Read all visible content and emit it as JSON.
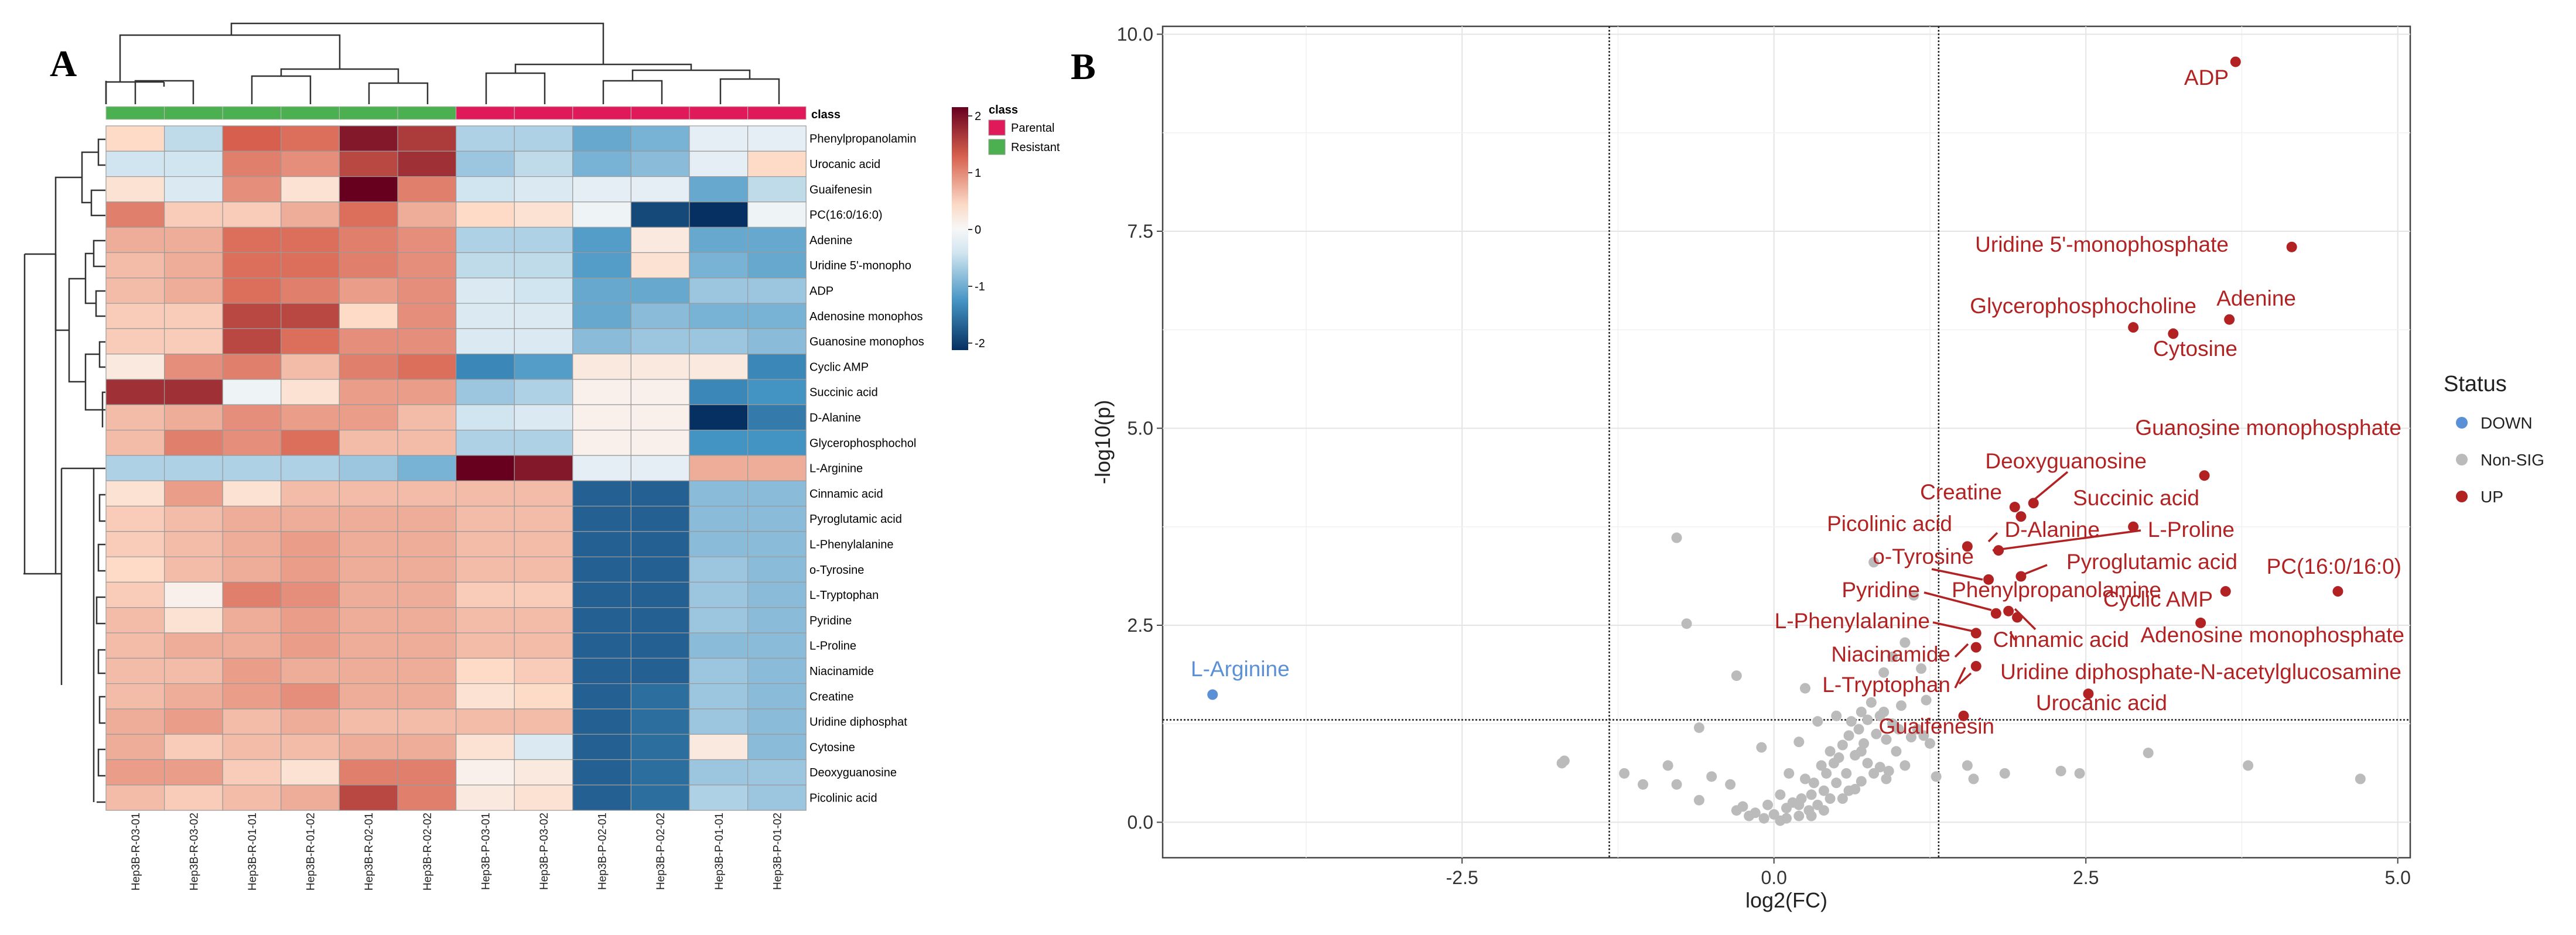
{
  "panels": {
    "a": "A",
    "b": "B"
  },
  "chart_data": [
    {
      "type": "heatmap",
      "annotation_label": "class",
      "samples": [
        "Hep3B-R-03-01",
        "Hep3B-R-03-02",
        "Hep3B-R-01-01",
        "Hep3B-R-01-02",
        "Hep3B-R-02-01",
        "Hep3B-R-02-02",
        "Hep3B-P-03-01",
        "Hep3B-P-03-02",
        "Hep3B-P-02-01",
        "Hep3B-P-02-02",
        "Hep3B-P-01-01",
        "Hep3B-P-01-02"
      ],
      "sample_class": [
        "Resistant",
        "Resistant",
        "Resistant",
        "Resistant",
        "Resistant",
        "Resistant",
        "Parental",
        "Parental",
        "Parental",
        "Parental",
        "Parental",
        "Parental"
      ],
      "rows": [
        "Phenylpropanolamin",
        "Urocanic acid",
        "Guaifenesin",
        "PC(16:0/16:0)",
        "Adenine",
        "Uridine 5'-monopho",
        "ADP",
        "Adenosine monophos",
        "Guanosine monophos",
        "Cyclic AMP",
        "Succinic acid",
        "D-Alanine",
        "Glycerophosphochol",
        "L-Arginine",
        "Cinnamic acid",
        "Pyroglutamic acid",
        "L-Phenylalanine",
        "o-Tyrosine",
        "L-Tryptophan",
        "Pyridine",
        "L-Proline",
        "Niacinamide",
        "Creatine",
        "Uridine diphosphat",
        "Cytosine",
        "Deoxyguanosine",
        "Picolinic acid"
      ],
      "values": [
        [
          0.4,
          -0.5,
          1.2,
          1.1,
          1.8,
          1.5,
          -0.6,
          -0.6,
          -1.0,
          -0.9,
          -0.2,
          -0.2
        ],
        [
          -0.4,
          -0.4,
          1.0,
          0.9,
          1.4,
          1.6,
          -0.7,
          -0.5,
          -0.9,
          -0.8,
          -0.2,
          0.4
        ],
        [
          0.3,
          -0.3,
          0.9,
          0.3,
          2.0,
          1.0,
          -0.4,
          -0.3,
          -0.2,
          -0.2,
          -1.0,
          -0.5
        ],
        [
          1.0,
          0.5,
          0.5,
          0.7,
          1.1,
          0.7,
          0.4,
          0.3,
          -0.1,
          -1.8,
          -2.0,
          -0.1
        ],
        [
          0.7,
          0.7,
          1.1,
          1.1,
          1.0,
          0.9,
          -0.6,
          -0.6,
          -1.1,
          0.2,
          -1.0,
          -1.0
        ],
        [
          0.6,
          0.7,
          1.1,
          1.1,
          1.0,
          0.9,
          -0.5,
          -0.5,
          -1.1,
          0.3,
          -0.9,
          -1.0
        ],
        [
          0.6,
          0.7,
          1.1,
          1.0,
          0.8,
          0.9,
          -0.3,
          -0.4,
          -1.0,
          -1.0,
          -0.7,
          -0.7
        ],
        [
          0.5,
          0.5,
          1.4,
          1.4,
          0.4,
          0.9,
          -0.3,
          -0.3,
          -1.0,
          -0.8,
          -0.9,
          -0.9
        ],
        [
          0.5,
          0.5,
          1.4,
          1.1,
          0.9,
          0.9,
          -0.3,
          -0.3,
          -0.8,
          -0.7,
          -0.7,
          -0.8
        ],
        [
          0.2,
          0.9,
          1.0,
          0.6,
          1.0,
          1.1,
          -1.3,
          -1.1,
          0.2,
          0.2,
          0.2,
          -1.3
        ],
        [
          1.6,
          1.6,
          -0.1,
          0.3,
          0.8,
          0.8,
          -0.7,
          -0.6,
          0.1,
          0.1,
          -1.3,
          -1.2
        ],
        [
          0.6,
          0.7,
          0.9,
          0.8,
          0.8,
          0.6,
          -0.4,
          -0.3,
          0.1,
          0.1,
          -2.0,
          -1.4
        ],
        [
          0.6,
          1.0,
          0.9,
          1.1,
          0.6,
          0.6,
          -0.6,
          -0.6,
          0.1,
          0.1,
          -1.2,
          -1.2
        ],
        [
          -0.6,
          -0.6,
          -0.6,
          -0.6,
          -0.7,
          -0.9,
          2.0,
          1.8,
          -0.2,
          -0.2,
          0.7,
          0.7
        ],
        [
          0.3,
          0.8,
          0.3,
          0.6,
          0.6,
          0.6,
          0.6,
          0.6,
          -1.6,
          -1.6,
          -0.8,
          -0.8
        ],
        [
          0.5,
          0.6,
          0.7,
          0.7,
          0.7,
          0.7,
          0.6,
          0.6,
          -1.6,
          -1.6,
          -0.8,
          -0.8
        ],
        [
          0.5,
          0.6,
          0.7,
          0.8,
          0.7,
          0.7,
          0.6,
          0.6,
          -1.6,
          -1.6,
          -0.8,
          -0.8
        ],
        [
          0.4,
          0.6,
          0.7,
          0.8,
          0.7,
          0.7,
          0.6,
          0.6,
          -1.6,
          -1.6,
          -0.7,
          -0.8
        ],
        [
          0.5,
          0.1,
          1.0,
          0.9,
          0.7,
          0.7,
          0.5,
          0.5,
          -1.6,
          -1.6,
          -0.7,
          -0.8
        ],
        [
          0.6,
          0.3,
          0.7,
          0.8,
          0.7,
          0.7,
          0.6,
          0.6,
          -1.6,
          -1.6,
          -0.7,
          -0.8
        ],
        [
          0.6,
          0.7,
          0.7,
          0.8,
          0.7,
          0.7,
          0.6,
          0.6,
          -1.6,
          -1.6,
          -0.8,
          -0.8
        ],
        [
          0.6,
          0.6,
          0.8,
          0.7,
          0.7,
          0.7,
          0.4,
          0.5,
          -1.6,
          -1.6,
          -0.7,
          -0.8
        ],
        [
          0.6,
          0.7,
          0.8,
          0.9,
          0.7,
          0.7,
          0.3,
          0.4,
          -1.6,
          -1.5,
          -0.7,
          -0.8
        ],
        [
          0.7,
          0.8,
          0.6,
          0.7,
          0.6,
          0.6,
          0.6,
          0.6,
          -1.6,
          -1.5,
          -0.7,
          -0.8
        ],
        [
          0.7,
          0.5,
          0.6,
          0.6,
          0.7,
          0.7,
          0.3,
          -0.3,
          -1.6,
          -1.5,
          0.2,
          -0.8
        ],
        [
          0.8,
          0.8,
          0.5,
          0.3,
          1.0,
          1.0,
          0.1,
          0.2,
          -1.6,
          -1.5,
          -0.7,
          -0.7
        ],
        [
          0.6,
          0.5,
          0.6,
          0.7,
          1.4,
          1.0,
          0.2,
          0.3,
          -1.6,
          -1.5,
          -0.6,
          -0.7
        ]
      ],
      "color_scale": {
        "min": -2,
        "max": 2,
        "ticks": [
          "2",
          "1",
          "0",
          "-1",
          "-2"
        ]
      },
      "legend": {
        "title": "class",
        "entries": [
          {
            "label": "Parental",
            "color": "#e0195a"
          },
          {
            "label": "Resistant",
            "color": "#4caf50"
          }
        ]
      }
    },
    {
      "type": "scatter",
      "xlabel": "log2(FC)",
      "ylabel": "-log10(p)",
      "xlim": [
        -4.9,
        5.1
      ],
      "ylim": [
        -0.45,
        10.1
      ],
      "xticks": [
        {
          "v": -2.5,
          "t": "-2.5"
        },
        {
          "v": 0,
          "t": "0.0"
        },
        {
          "v": 2.5,
          "t": "2.5"
        },
        {
          "v": 5,
          "t": "5.0"
        }
      ],
      "yticks": [
        {
          "v": 0,
          "t": "0.0"
        },
        {
          "v": 2.5,
          "t": "2.5"
        },
        {
          "v": 5,
          "t": "5.0"
        },
        {
          "v": 7.5,
          "t": "7.5"
        },
        {
          "v": 10,
          "t": "10.0"
        }
      ],
      "thresholds": {
        "fc": [
          -1.32,
          1.32
        ],
        "p": 1.3
      },
      "legend": {
        "title": "Status",
        "entries": [
          {
            "label": "DOWN",
            "color": "#5b8fd6"
          },
          {
            "label": "Non-SIG",
            "color": "#bbbbbb"
          },
          {
            "label": "UP",
            "color": "#b22222"
          }
        ]
      },
      "colors": {
        "DOWN": "#5b8fd6",
        "NON": "#bbbbbb",
        "UP": "#b22222"
      },
      "labeled": [
        {
          "name": "ADP",
          "x": 3.7,
          "y": 9.65,
          "s": "UP"
        },
        {
          "name": "Uridine 5'-monophosphate",
          "x": 4.15,
          "y": 7.3,
          "s": "UP"
        },
        {
          "name": "Glycerophosphocholine",
          "x": 2.88,
          "y": 6.28,
          "s": "UP"
        },
        {
          "name": "Adenine",
          "x": 3.65,
          "y": 6.38,
          "s": "UP"
        },
        {
          "name": "Cytosine",
          "x": 3.2,
          "y": 6.2,
          "s": "UP"
        },
        {
          "name": "Guanosine monophosphate",
          "x": 3.45,
          "y": 4.4,
          "s": "UP"
        },
        {
          "name": "Deoxyguanosine",
          "x": 2.08,
          "y": 4.05,
          "s": "UP"
        },
        {
          "name": "Creatine",
          "x": 1.93,
          "y": 4.0,
          "s": "UP"
        },
        {
          "name": "Succinic acid",
          "x": 1.98,
          "y": 3.88,
          "s": "UP"
        },
        {
          "name": "Picolinic acid",
          "x": 1.55,
          "y": 3.5,
          "s": "UP"
        },
        {
          "name": "D-Alanine",
          "x": 1.8,
          "y": 3.45,
          "s": "UP"
        },
        {
          "name": "L-Proline",
          "x": 2.88,
          "y": 3.75,
          "s": "UP"
        },
        {
          "name": "o-Tyrosine",
          "x": 1.72,
          "y": 3.08,
          "s": "UP"
        },
        {
          "name": "Pyroglutamic acid",
          "x": 1.98,
          "y": 3.12,
          "s": "UP"
        },
        {
          "name": "PC(16:0/16:0)",
          "x": 4.52,
          "y": 2.93,
          "s": "UP"
        },
        {
          "name": "Pyridine",
          "x": 1.78,
          "y": 2.65,
          "s": "UP"
        },
        {
          "name": "Phenylpropanolamine",
          "x": 1.88,
          "y": 2.68,
          "s": "UP"
        },
        {
          "name": "Cyclic AMP",
          "x": 3.62,
          "y": 2.93,
          "s": "UP"
        },
        {
          "name": "L-Phenylalanine",
          "x": 1.62,
          "y": 2.4,
          "s": "UP"
        },
        {
          "name": "Cinnamic acid",
          "x": 1.95,
          "y": 2.6,
          "s": "UP"
        },
        {
          "name": "Adenosine monophosphate",
          "x": 3.42,
          "y": 2.53,
          "s": "UP"
        },
        {
          "name": "Niacinamide",
          "x": 1.62,
          "y": 2.22,
          "s": "UP"
        },
        {
          "name": "Uridine diphosphate-N-acetylglucosamine",
          "x": 1.62,
          "y": 1.98,
          "s": "UP"
        },
        {
          "name": "L-Tryptophan",
          "x": 1.52,
          "y": 1.35,
          "s": "UP"
        },
        {
          "name": "Urocanic acid",
          "x": 2.52,
          "y": 1.63,
          "s": "UP"
        },
        {
          "name": "Guaifenesin",
          "x": 1.52,
          "y": 1.35,
          "s": "UP"
        },
        {
          "name": "L-Arginine",
          "x": -4.5,
          "y": 1.62,
          "s": "DOWN"
        }
      ],
      "nonsig": [
        [
          -0.78,
          3.61
        ],
        [
          -0.7,
          2.52
        ],
        [
          -0.3,
          1.86
        ],
        [
          -0.6,
          1.2
        ],
        [
          -1.7,
          0.75
        ],
        [
          -1.68,
          0.78
        ],
        [
          -1.2,
          0.62
        ],
        [
          -1.05,
          0.48
        ],
        [
          -0.85,
          0.72
        ],
        [
          -0.78,
          0.48
        ],
        [
          -0.5,
          0.58
        ],
        [
          -0.35,
          0.48
        ],
        [
          -0.6,
          0.28
        ],
        [
          -0.3,
          0.15
        ],
        [
          -0.25,
          0.2
        ],
        [
          -0.2,
          0.08
        ],
        [
          -0.15,
          0.12
        ],
        [
          -0.08,
          0.05
        ],
        [
          0.0,
          0.1
        ],
        [
          0.05,
          0.02
        ],
        [
          0.1,
          0.18
        ],
        [
          0.15,
          0.25
        ],
        [
          0.2,
          0.08
        ],
        [
          0.22,
          0.3
        ],
        [
          0.28,
          0.15
        ],
        [
          0.3,
          0.35
        ],
        [
          0.32,
          0.5
        ],
        [
          0.35,
          0.22
        ],
        [
          0.4,
          0.4
        ],
        [
          0.42,
          0.62
        ],
        [
          0.45,
          0.3
        ],
        [
          0.48,
          0.75
        ],
        [
          0.5,
          0.5
        ],
        [
          0.52,
          0.82
        ],
        [
          0.55,
          0.98
        ],
        [
          0.58,
          0.62
        ],
        [
          0.6,
          1.1
        ],
        [
          0.62,
          1.28
        ],
        [
          0.65,
          0.85
        ],
        [
          0.68,
          1.18
        ],
        [
          0.7,
          1.4
        ],
        [
          0.72,
          1.0
        ],
        [
          0.75,
          1.3
        ],
        [
          0.78,
          1.52
        ],
        [
          0.8,
          3.3
        ],
        [
          0.82,
          1.12
        ],
        [
          0.85,
          1.35
        ],
        [
          0.88,
          1.9
        ],
        [
          0.9,
          1.05
        ],
        [
          0.95,
          1.25
        ],
        [
          0.98,
          0.9
        ],
        [
          1.0,
          1.18
        ],
        [
          1.02,
          1.48
        ],
        [
          1.05,
          0.72
        ],
        [
          0.8,
          0.62
        ],
        [
          0.7,
          0.52
        ],
        [
          0.9,
          0.55
        ],
        [
          0.6,
          0.4
        ],
        [
          0.4,
          0.15
        ],
        [
          0.3,
          0.08
        ],
        [
          0.2,
          0.22
        ],
        [
          0.1,
          0.05
        ],
        [
          -0.05,
          0.22
        ],
        [
          0.05,
          0.35
        ],
        [
          0.25,
          0.55
        ],
        [
          0.38,
          0.72
        ],
        [
          0.55,
          0.3
        ],
        [
          0.65,
          0.42
        ],
        [
          0.75,
          0.75
        ],
        [
          0.85,
          0.7
        ],
        [
          0.92,
          0.65
        ],
        [
          1.1,
          1.08
        ],
        [
          1.15,
          1.18
        ],
        [
          1.22,
          1.55
        ],
        [
          1.25,
          1.0
        ],
        [
          1.3,
          0.58
        ],
        [
          1.55,
          0.72
        ],
        [
          1.6,
          0.55
        ],
        [
          1.85,
          0.62
        ],
        [
          2.3,
          0.65
        ],
        [
          2.45,
          0.62
        ],
        [
          3.0,
          0.88
        ],
        [
          3.8,
          0.72
        ],
        [
          4.7,
          0.55
        ],
        [
          0.35,
          1.28
        ],
        [
          0.5,
          1.35
        ],
        [
          0.2,
          1.02
        ],
        [
          -0.1,
          0.95
        ],
        [
          1.12,
          2.88
        ],
        [
          1.18,
          1.95
        ],
        [
          0.95,
          2.1
        ],
        [
          1.05,
          2.28
        ],
        [
          1.2,
          1.1
        ],
        [
          0.7,
          0.9
        ],
        [
          0.88,
          1.4
        ],
        [
          0.25,
          1.7
        ],
        [
          0.12,
          0.62
        ],
        [
          0.45,
          0.9
        ]
      ]
    }
  ]
}
